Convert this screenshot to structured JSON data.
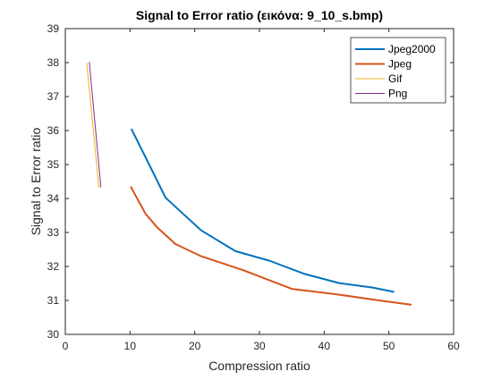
{
  "chart_data": {
    "type": "line",
    "title": "Signal to Error ratio (εικόνα: 9_10_s.bmp)",
    "xlabel": "Compression ratio",
    "ylabel": "Signal to Error ratio",
    "xlim": [
      0,
      60
    ],
    "ylim": [
      30,
      39
    ],
    "xticks": [
      0,
      10,
      20,
      30,
      40,
      50,
      60
    ],
    "yticks": [
      30,
      31,
      32,
      33,
      34,
      35,
      36,
      37,
      38,
      39
    ],
    "grid": false,
    "legend_position": "top-right",
    "series": [
      {
        "name": "Jpeg2000",
        "color": "#0072BD",
        "x": [
          10.2,
          12.3,
          15.5,
          21.0,
          26.3,
          31.5,
          37.0,
          42.3,
          47.5,
          50.8
        ],
        "y": [
          36.05,
          35.25,
          34.02,
          33.06,
          32.45,
          32.17,
          31.78,
          31.51,
          31.38,
          31.25
        ]
      },
      {
        "name": "Jpeg",
        "color": "#D95319",
        "x": [
          10.1,
          12.4,
          14.2,
          17.0,
          21.0,
          27.5,
          35.0,
          42.0,
          48.5,
          53.5
        ],
        "y": [
          34.35,
          33.55,
          33.15,
          32.66,
          32.3,
          31.89,
          31.34,
          31.18,
          31.0,
          30.87
        ]
      },
      {
        "name": "Gif",
        "color": "#EDB120",
        "x": [
          3.3,
          5.2
        ],
        "y": [
          38.0,
          34.32
        ]
      },
      {
        "name": "Png",
        "color": "#7E2F8E",
        "x": [
          3.7,
          5.5
        ],
        "y": [
          38.02,
          34.33
        ]
      }
    ]
  }
}
